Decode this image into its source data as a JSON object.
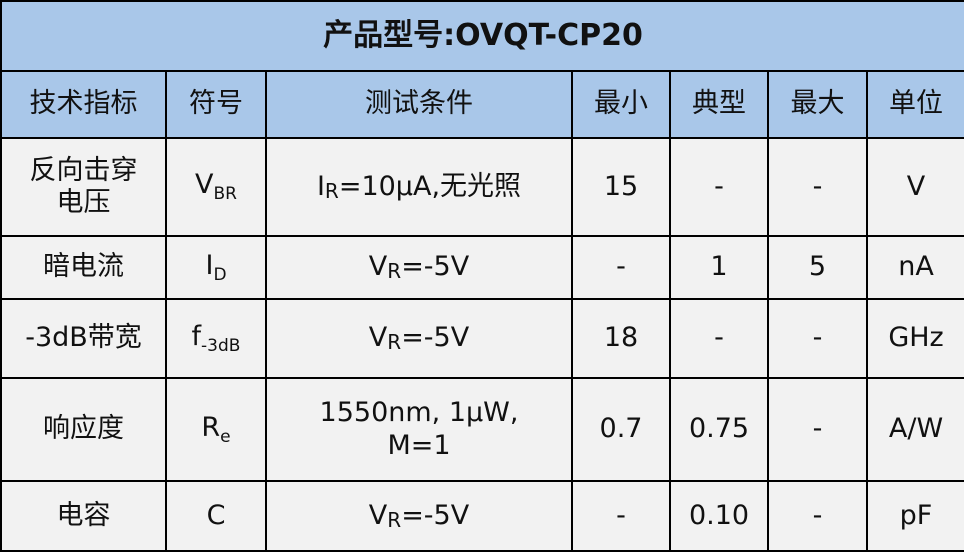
{
  "title": "产品型号:OVQT-CP20",
  "header": [
    "技术指标",
    "符号",
    "测试条件",
    "最小",
    "典型",
    "最大",
    "单位"
  ],
  "rows": [
    {
      "name": [
        "反向击穿",
        "电压"
      ],
      "symbol": [
        "V",
        "BR"
      ],
      "condition": [
        "I",
        "R",
        "=10μA,无光照"
      ],
      "min": "15",
      "typ": "-",
      "max": "-",
      "unit": "V"
    },
    {
      "name": [
        "暗电流"
      ],
      "symbol": [
        "I",
        "D"
      ],
      "condition": [
        "V",
        "R",
        "=-5V"
      ],
      "min": "-",
      "typ": "1",
      "max": "5",
      "unit": "nA"
    },
    {
      "name": [
        "-3dB带宽"
      ],
      "symbol": [
        "f",
        "-3dB"
      ],
      "condition": [
        "V",
        "R",
        "=-5V"
      ],
      "min": "18",
      "typ": "-",
      "max": "-",
      "unit": "GHz"
    },
    {
      "name": [
        "响应度"
      ],
      "symbol": [
        "R",
        "e"
      ],
      "condition": [
        "1550nm, 1μW,",
        "M=1"
      ],
      "min": "0.7",
      "typ": "0.75",
      "max": "-",
      "unit": "A/W"
    },
    {
      "name": [
        "电容"
      ],
      "symbol": [
        "C"
      ],
      "condition": [
        "V",
        "R",
        "=-5V"
      ],
      "min": "-",
      "typ": "0.10",
      "max": "-",
      "unit": "pF"
    }
  ]
}
